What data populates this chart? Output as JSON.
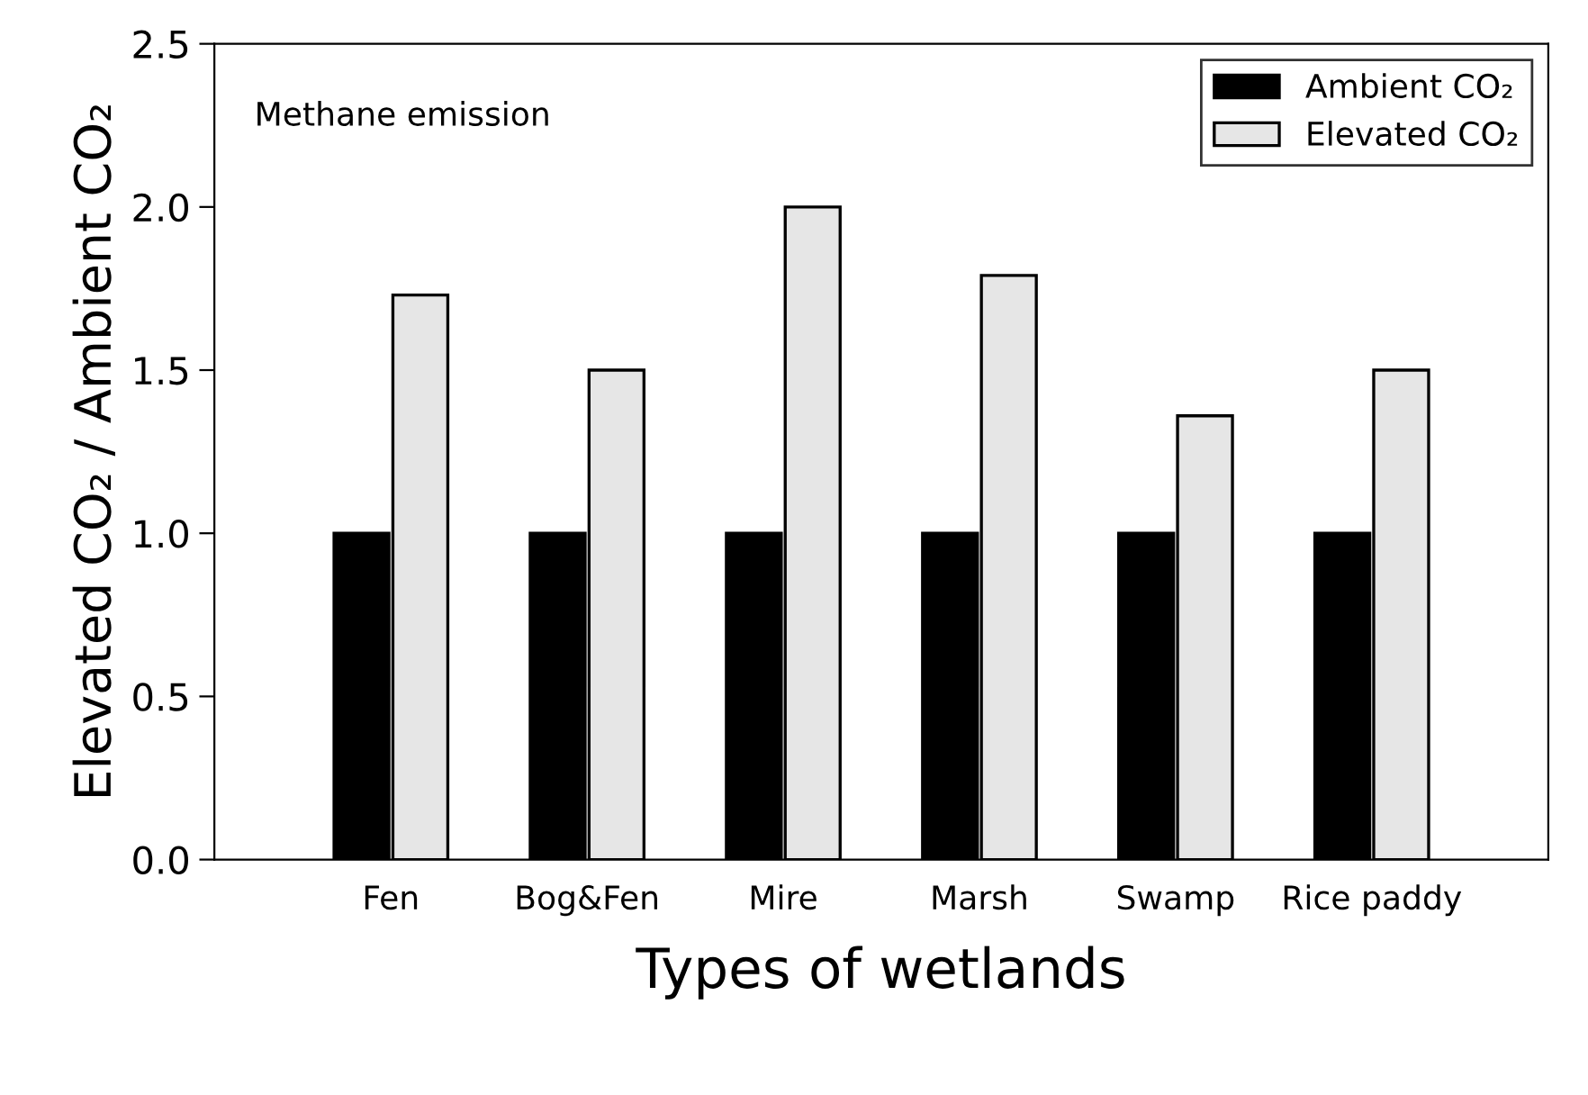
{
  "chart_data": {
    "type": "bar",
    "xlabel": "Types of wetlands",
    "ylabel": "Elevated CO₂ / Ambient CO₂",
    "annotations": [
      "Methane emission"
    ],
    "categories": [
      "Fen",
      "Bog&Fen",
      "Mire",
      "Marsh",
      "Swamp",
      "Rice paddy"
    ],
    "series": [
      {
        "name": "Ambient CO₂",
        "color": "#000000",
        "values": [
          1.0,
          1.0,
          1.0,
          1.0,
          1.0,
          1.0
        ]
      },
      {
        "name": "Elevated CO₂",
        "color": "#e6e6e6",
        "values": [
          1.73,
          1.5,
          2.0,
          1.79,
          1.36,
          1.5
        ]
      }
    ],
    "ylim": [
      0,
      2.5
    ],
    "yticks": [
      {
        "value": 0,
        "label": "0.0"
      },
      {
        "value": 0.5,
        "label": "0.5"
      },
      {
        "value": 1,
        "label": "1.0"
      },
      {
        "value": 1.5,
        "label": "1.5"
      },
      {
        "value": 2,
        "label": "2.0"
      },
      {
        "value": 2.5,
        "label": "2.5"
      }
    ],
    "grid": false,
    "legend": "top right"
  }
}
